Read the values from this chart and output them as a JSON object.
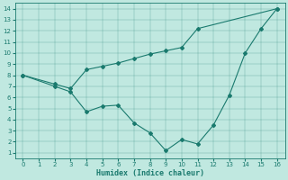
{
  "line1_x": [
    0,
    2,
    3,
    4,
    5,
    6,
    7,
    8,
    9,
    10,
    11,
    12,
    13,
    14,
    15,
    16
  ],
  "line1_y": [
    8.0,
    7.0,
    6.5,
    4.7,
    5.2,
    5.3,
    3.7,
    2.8,
    1.2,
    2.2,
    1.8,
    3.5,
    6.2,
    10.0,
    12.2,
    14.0
  ],
  "line2_x": [
    0,
    2,
    3,
    4,
    5,
    6,
    7,
    8,
    9,
    10,
    11,
    16
  ],
  "line2_y": [
    8.0,
    7.2,
    6.8,
    8.5,
    8.8,
    9.1,
    9.5,
    9.9,
    10.2,
    10.5,
    12.2,
    14.0
  ],
  "color": "#1a7a6e",
  "bg_color": "#c0e8e0",
  "xlabel": "Humidex (Indice chaleur)",
  "xlim": [
    -0.5,
    16.5
  ],
  "ylim": [
    0.5,
    14.5
  ],
  "xticks": [
    0,
    1,
    2,
    3,
    4,
    5,
    6,
    7,
    8,
    9,
    10,
    11,
    12,
    13,
    14,
    15,
    16
  ],
  "yticks": [
    1,
    2,
    3,
    4,
    5,
    6,
    7,
    8,
    9,
    10,
    11,
    12,
    13,
    14
  ],
  "tick_fontsize": 5.0,
  "xlabel_fontsize": 6.0,
  "linewidth": 0.8,
  "markersize": 2.0
}
